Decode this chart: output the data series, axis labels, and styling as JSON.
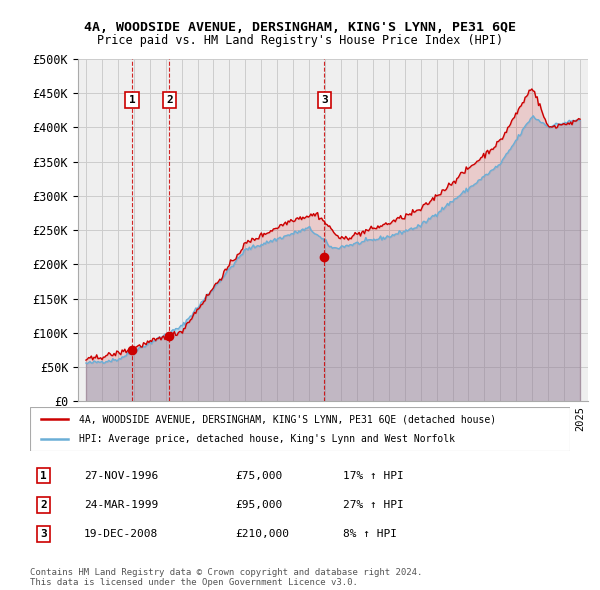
{
  "title1": "4A, WOODSIDE AVENUE, DERSINGHAM, KING'S LYNN, PE31 6QE",
  "title2": "Price paid vs. HM Land Registry's House Price Index (HPI)",
  "legend_line1": "4A, WOODSIDE AVENUE, DERSINGHAM, KING'S LYNN, PE31 6QE (detached house)",
  "legend_line2": "HPI: Average price, detached house, King's Lynn and West Norfolk",
  "sales": [
    {
      "num": 1,
      "date": "27-NOV-1996",
      "price": 75000,
      "hpi_pct": "17%",
      "year": 1996.9
    },
    {
      "num": 2,
      "date": "24-MAR-1999",
      "price": 95000,
      "hpi_pct": "27%",
      "year": 1999.23
    },
    {
      "num": 3,
      "date": "19-DEC-2008",
      "price": 210000,
      "hpi_pct": "8%",
      "year": 2008.96
    }
  ],
  "copyright": "Contains HM Land Registry data © Crown copyright and database right 2024.\nThis data is licensed under the Open Government Licence v3.0.",
  "hpi_color": "#6baed6",
  "price_color": "#cc0000",
  "dot_color": "#cc0000",
  "ylim": [
    0,
    500000
  ],
  "yticks": [
    0,
    50000,
    100000,
    150000,
    200000,
    250000,
    300000,
    350000,
    400000,
    450000,
    500000
  ],
  "xlim_start": 1993.5,
  "xlim_end": 2025.5,
  "grid_color": "#cccccc"
}
